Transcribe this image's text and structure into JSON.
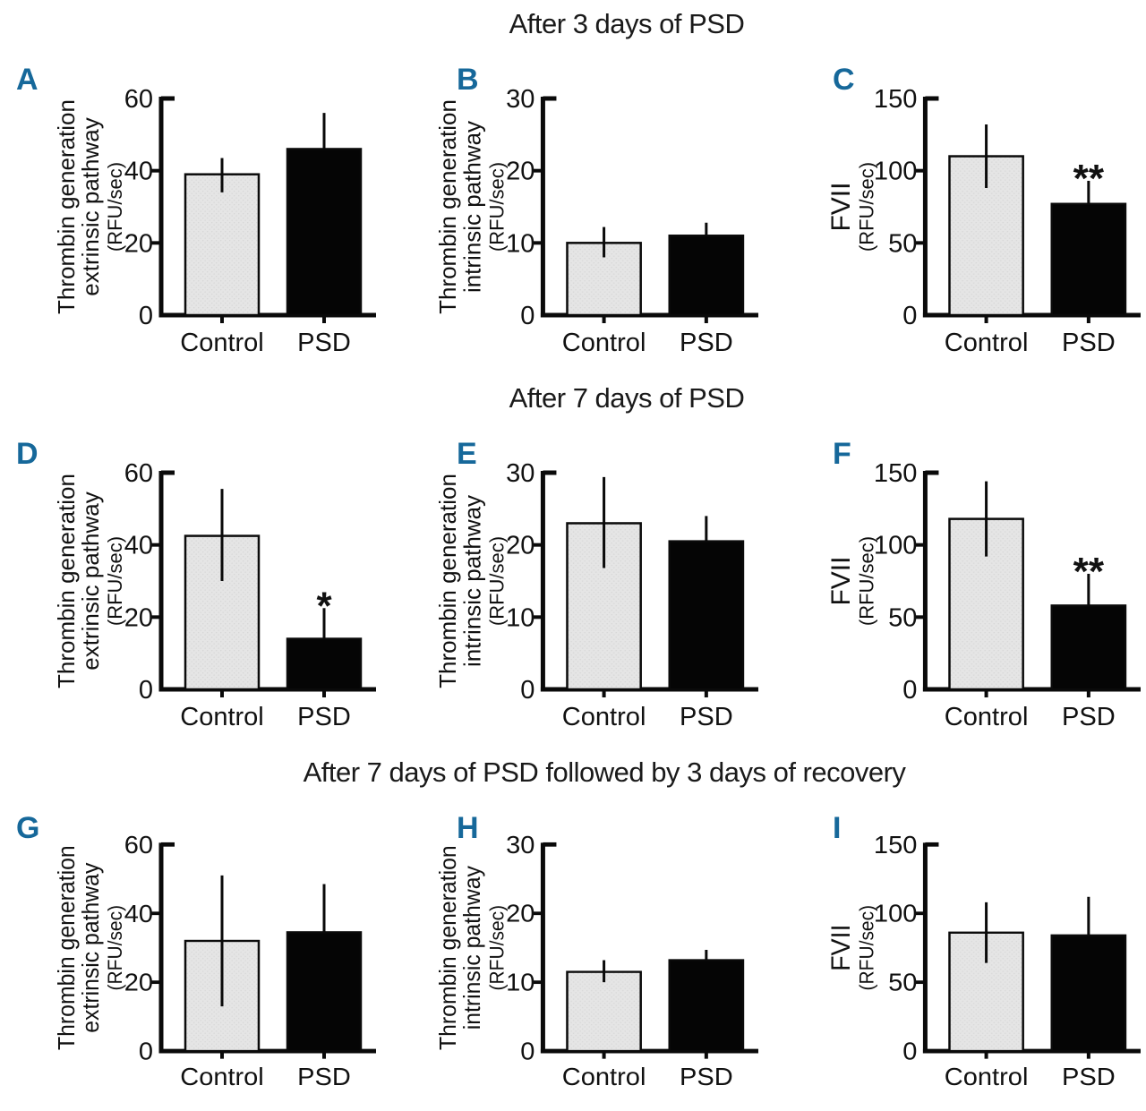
{
  "figure_titles": {
    "row1": "After 3 days of PSD",
    "row2": "After 7 days of PSD",
    "row3": "After 7 days of PSD followed by 3 days of recovery"
  },
  "colors": {
    "panel_letter": "#16689a",
    "control_fill": "#e5e5e5",
    "control_dot": "#d7d7d7",
    "psd_fill": "#050505",
    "axis": "#0a0a0a",
    "text": "#111111"
  },
  "chart_data": [
    {
      "type": "bar",
      "panel": "A",
      "row": 1,
      "col": 1,
      "ylabel_lines": [
        "Thrombin generation",
        "extrinsic pathway"
      ],
      "ylabel_units": "(RFU/sec)",
      "ylim": [
        0,
        60
      ],
      "yticks": [
        0,
        20,
        40,
        60
      ],
      "categories": [
        "Control",
        "PSD"
      ],
      "series": [
        {
          "name": "Control",
          "value": 39,
          "err_up": 4.5,
          "err_down": 5,
          "significance": ""
        },
        {
          "name": "PSD",
          "value": 46,
          "err_up": 10,
          "err_down": 0,
          "significance": ""
        }
      ]
    },
    {
      "type": "bar",
      "panel": "B",
      "row": 1,
      "col": 2,
      "ylabel_lines": [
        "Thrombin generation",
        "intrinsic pathway"
      ],
      "ylabel_units": "(RFU/sec)",
      "ylim": [
        0,
        30
      ],
      "yticks": [
        0,
        10,
        20,
        30
      ],
      "categories": [
        "Control",
        "PSD"
      ],
      "series": [
        {
          "name": "Control",
          "value": 10,
          "err_up": 2.2,
          "err_down": 2,
          "significance": ""
        },
        {
          "name": "PSD",
          "value": 11,
          "err_up": 1.8,
          "err_down": 0,
          "significance": ""
        }
      ]
    },
    {
      "type": "bar",
      "panel": "C",
      "row": 1,
      "col": 3,
      "ylabel_lines": [
        "FVII"
      ],
      "ylabel_units": "(RFU/sec)",
      "ylim": [
        0,
        150
      ],
      "yticks": [
        0,
        50,
        100,
        150
      ],
      "categories": [
        "Control",
        "PSD"
      ],
      "series": [
        {
          "name": "Control",
          "value": 110,
          "err_up": 22,
          "err_down": 22,
          "significance": ""
        },
        {
          "name": "PSD",
          "value": 77,
          "err_up": 16,
          "err_down": 0,
          "significance": "**"
        }
      ]
    },
    {
      "type": "bar",
      "panel": "D",
      "row": 2,
      "col": 1,
      "ylabel_lines": [
        "Thrombin generation",
        "extrinsic pathway"
      ],
      "ylabel_units": "(RFU/sec)",
      "ylim": [
        0,
        60
      ],
      "yticks": [
        0,
        20,
        40,
        60
      ],
      "categories": [
        "Control",
        "PSD"
      ],
      "series": [
        {
          "name": "Control",
          "value": 42.5,
          "err_up": 13,
          "err_down": 12.5,
          "significance": ""
        },
        {
          "name": "PSD",
          "value": 14,
          "err_up": 8.5,
          "err_down": 0,
          "significance": "*"
        }
      ]
    },
    {
      "type": "bar",
      "panel": "E",
      "row": 2,
      "col": 2,
      "ylabel_lines": [
        "Thrombin generation",
        "intrinsic pathway"
      ],
      "ylabel_units": "(RFU/sec)",
      "ylim": [
        0,
        30
      ],
      "yticks": [
        0,
        10,
        20,
        30
      ],
      "categories": [
        "Control",
        "PSD"
      ],
      "series": [
        {
          "name": "Control",
          "value": 23,
          "err_up": 6.4,
          "err_down": 6.2,
          "significance": ""
        },
        {
          "name": "PSD",
          "value": 20.5,
          "err_up": 3.5,
          "err_down": 0,
          "significance": ""
        }
      ]
    },
    {
      "type": "bar",
      "panel": "F",
      "row": 2,
      "col": 3,
      "ylabel_lines": [
        "FVII"
      ],
      "ylabel_units": "(RFU/sec)",
      "ylim": [
        0,
        150
      ],
      "yticks": [
        0,
        50,
        100,
        150
      ],
      "categories": [
        "Control",
        "PSD"
      ],
      "series": [
        {
          "name": "Control",
          "value": 118,
          "err_up": 26,
          "err_down": 26,
          "significance": ""
        },
        {
          "name": "PSD",
          "value": 58,
          "err_up": 22,
          "err_down": 0,
          "significance": "**"
        }
      ]
    },
    {
      "type": "bar",
      "panel": "G",
      "row": 3,
      "col": 1,
      "ylabel_lines": [
        "Thrombin generation",
        "extrinsic pathway"
      ],
      "ylabel_units": "(RFU/sec)",
      "ylim": [
        0,
        60
      ],
      "yticks": [
        0,
        20,
        40,
        60
      ],
      "categories": [
        "Control",
        "PSD"
      ],
      "series": [
        {
          "name": "Control",
          "value": 32,
          "err_up": 19,
          "err_down": 19,
          "significance": ""
        },
        {
          "name": "PSD",
          "value": 34.5,
          "err_up": 14,
          "err_down": 0,
          "significance": ""
        }
      ]
    },
    {
      "type": "bar",
      "panel": "H",
      "row": 3,
      "col": 2,
      "ylabel_lines": [
        "Thrombin generation",
        "intrinsic pathway"
      ],
      "ylabel_units": "(RFU/sec)",
      "ylim": [
        0,
        30
      ],
      "yticks": [
        0,
        10,
        20,
        30
      ],
      "categories": [
        "Control",
        "PSD"
      ],
      "series": [
        {
          "name": "Control",
          "value": 11.5,
          "err_up": 1.7,
          "err_down": 1.5,
          "significance": ""
        },
        {
          "name": "PSD",
          "value": 13.2,
          "err_up": 1.5,
          "err_down": 0,
          "significance": ""
        }
      ]
    },
    {
      "type": "bar",
      "panel": "I",
      "row": 3,
      "col": 3,
      "ylabel_lines": [
        "FVII"
      ],
      "ylabel_units": "(RFU/sec)",
      "ylim": [
        0,
        150
      ],
      "yticks": [
        0,
        50,
        100,
        150
      ],
      "categories": [
        "Control",
        "PSD"
      ],
      "series": [
        {
          "name": "Control",
          "value": 86,
          "err_up": 22,
          "err_down": 22,
          "significance": ""
        },
        {
          "name": "PSD",
          "value": 84,
          "err_up": 28,
          "err_down": 0,
          "significance": ""
        }
      ]
    }
  ]
}
